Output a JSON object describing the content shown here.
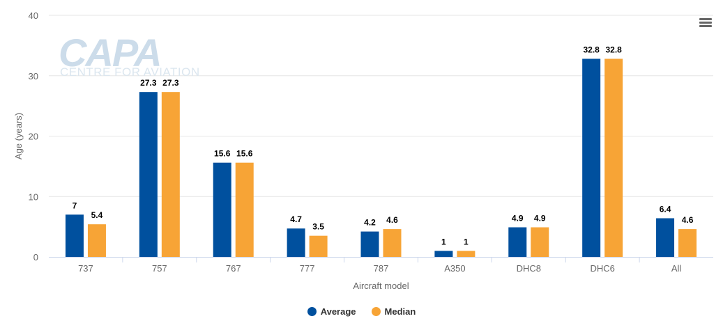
{
  "colors": {
    "average": "#00509e",
    "median": "#f7a436",
    "grid": "#e6e6e6",
    "axis": "#666666"
  },
  "logo": {
    "main": "CAPA",
    "sub": "CENTRE FOR AVIATION"
  },
  "menu": {
    "icon": "hamburger-menu-icon"
  },
  "legend": [
    {
      "label": "Average",
      "color": "#00509e"
    },
    {
      "label": "Median",
      "color": "#f7a436"
    }
  ],
  "chart_data": {
    "type": "bar",
    "title": "",
    "xlabel": "Aircraft model",
    "ylabel": "Age (years)",
    "ylim": [
      0,
      40
    ],
    "yticks": [
      0,
      10,
      20,
      30,
      40
    ],
    "grid": true,
    "legend_position": "bottom-center",
    "categories": [
      "737",
      "757",
      "767",
      "777",
      "787",
      "A350",
      "DHC8",
      "DHC6",
      "All"
    ],
    "series": [
      {
        "name": "Average",
        "values": [
          7,
          27.3,
          15.6,
          4.7,
          4.2,
          1,
          4.9,
          32.8,
          6.4
        ]
      },
      {
        "name": "Median",
        "values": [
          5.4,
          27.3,
          15.6,
          3.5,
          4.6,
          1,
          4.9,
          32.8,
          4.6
        ]
      }
    ]
  }
}
